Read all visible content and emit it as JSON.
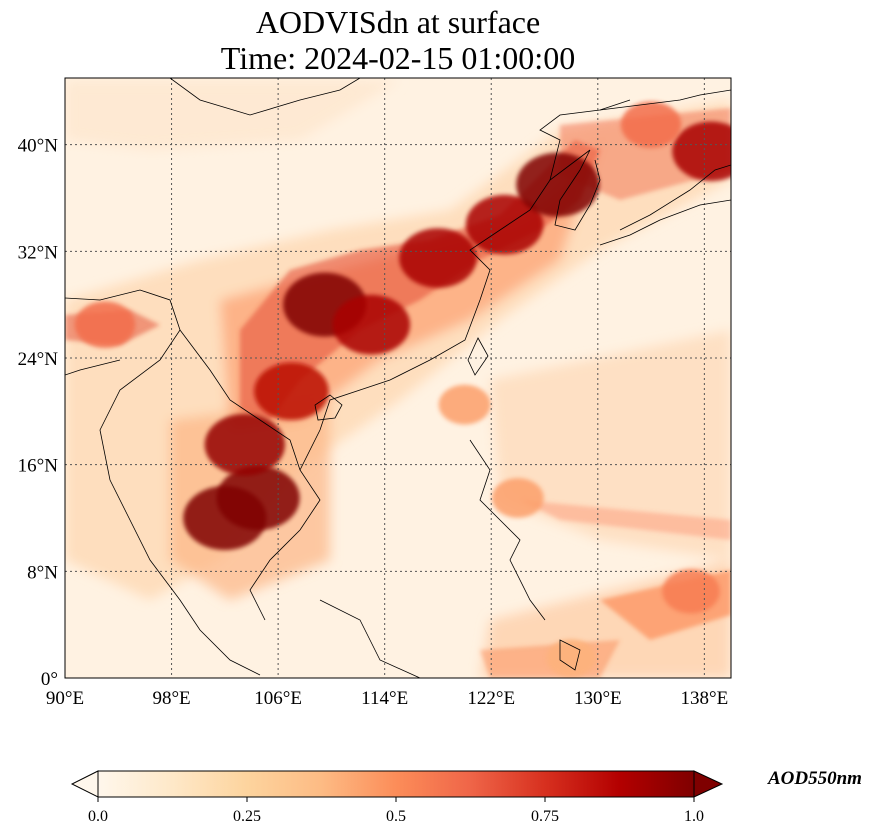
{
  "title": {
    "line1": "AODVISdn at surface",
    "line2": "Time: 2024-02-15 01:00:00"
  },
  "map": {
    "projection": "PlateCarree",
    "lon_range": [
      90,
      140
    ],
    "lat_range": [
      0,
      45
    ],
    "gridlines": "dotted",
    "coastlines": true,
    "x_ticks": [
      "90°E",
      "98°E",
      "106°E",
      "114°E",
      "122°E",
      "130°E",
      "138°E"
    ],
    "y_ticks": [
      "0°",
      "8°N",
      "16°N",
      "24°N",
      "32°N",
      "40°N"
    ]
  },
  "colorbar": {
    "label": "AOD550nm",
    "colormap": "OrRd",
    "range": [
      0.0,
      1.0
    ],
    "extend": "both",
    "tick_labels": [
      "0.0",
      "0.25",
      "0.5",
      "0.75",
      "1.0"
    ],
    "stops": [
      "#fff7ec",
      "#fee8c8",
      "#fdd49e",
      "#fdbb84",
      "#fc8d59",
      "#ef6548",
      "#d7301f",
      "#b30000",
      "#7f0000"
    ]
  },
  "chart_data": {
    "type": "heatmap",
    "variable": "AODVISdn at surface",
    "units": "AOD550nm",
    "xlim": [
      90,
      140
    ],
    "ylim": [
      0,
      45
    ],
    "hotspots": [
      {
        "lon": 109.5,
        "lat": 28.0,
        "aod": 1.0
      },
      {
        "lon": 113.0,
        "lat": 26.5,
        "aod": 0.9
      },
      {
        "lon": 118.0,
        "lat": 31.5,
        "aod": 0.9
      },
      {
        "lon": 123.0,
        "lat": 34.0,
        "aod": 0.9
      },
      {
        "lon": 127.0,
        "lat": 37.0,
        "aod": 1.0
      },
      {
        "lon": 102.0,
        "lat": 12.0,
        "aod": 1.0
      },
      {
        "lon": 104.5,
        "lat": 13.5,
        "aod": 1.0
      },
      {
        "lon": 103.5,
        "lat": 17.5,
        "aod": 0.95
      },
      {
        "lon": 107.0,
        "lat": 21.5,
        "aod": 0.85
      },
      {
        "lon": 138.5,
        "lat": 39.5,
        "aod": 0.9
      },
      {
        "lon": 134.0,
        "lat": 41.5,
        "aod": 0.6
      },
      {
        "lon": 93.0,
        "lat": 26.5,
        "aod": 0.6
      },
      {
        "lon": 137.0,
        "lat": 6.5,
        "aod": 0.55
      },
      {
        "lon": 128.0,
        "lat": 1.5,
        "aod": 0.4
      },
      {
        "lon": 124.0,
        "lat": 13.5,
        "aod": 0.45
      },
      {
        "lon": 120.0,
        "lat": 20.5,
        "aod": 0.45
      }
    ]
  }
}
